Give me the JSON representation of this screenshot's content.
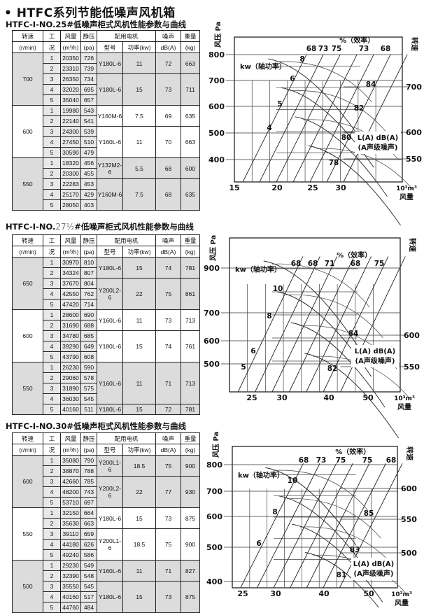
{
  "page_title": "• HTFC系列节能低噪声风机箱",
  "table_headers": {
    "speed": "转速",
    "speed_unit": "(r/min)",
    "case": "工况",
    "flow": "风量",
    "flow_unit": "(m³/h)",
    "pressure": "静压",
    "pressure_unit": "(pa)",
    "motor": "配用电机",
    "model": "型号",
    "power": "功率(kw)",
    "noise": "噪声",
    "noise_unit": "dB(A)",
    "weight": "重量",
    "weight_unit": "(kg)"
  },
  "tables": [
    {
      "title_prefix": "HTFC-Ⅰ-NO.",
      "title_no": "25",
      "title_suffix": "#低噪声柜式风机性能参数与曲线",
      "groups": [
        {
          "speed": "700",
          "rows": [
            [
              "1",
              "20350",
              "726"
            ],
            [
              "2",
              "23310",
              "739"
            ],
            [
              "3",
              "26350",
              "734"
            ],
            [
              "4",
              "32020",
              "695"
            ],
            [
              "5",
              "35040",
              "657"
            ]
          ],
          "motors": [
            {
              "model": "Y180L-6",
              "power": "11",
              "noise": "72",
              "weight": "663",
              "cases": 2
            },
            {
              "model": "Y180L-6",
              "power": "15",
              "noise": "73",
              "weight": "711",
              "cases": 3
            }
          ]
        },
        {
          "speed": "600",
          "rows": [
            [
              "1",
              "19980",
              "543"
            ],
            [
              "2",
              "22140",
              "541"
            ],
            [
              "3",
              "24300",
              "539"
            ],
            [
              "4",
              "27450",
              "510"
            ],
            [
              "5",
              "30590",
              "479"
            ]
          ],
          "motors": [
            {
              "model": "Y160M-6",
              "power": "7.5",
              "noise": "69",
              "weight": "635",
              "cases": 2
            },
            {
              "model": "Y160L-6",
              "power": "11",
              "noise": "70",
              "weight": "663",
              "cases": 3
            }
          ]
        },
        {
          "speed": "550",
          "rows": [
            [
              "1",
              "18320",
              "456"
            ],
            [
              "2",
              "20300",
              "455"
            ],
            [
              "3",
              "22283",
              "453"
            ],
            [
              "4",
              "25170",
              "429"
            ],
            [
              "5",
              "28050",
              "403"
            ]
          ],
          "motors": [
            {
              "model": "Y132M2-6",
              "power": "5.5",
              "noise": "68",
              "weight": "600",
              "cases": 2
            },
            {
              "model": "Y160M-6",
              "power": "7.5",
              "noise": "68",
              "weight": "635",
              "cases": 3
            }
          ]
        }
      ]
    },
    {
      "title_prefix": "HTFC-Ⅰ-NO.",
      "title_no": "27½",
      "title_suffix": "#低噪声柜式风机性能参数与曲线",
      "groups": [
        {
          "speed": "650",
          "rows": [
            [
              "1",
              "30970",
              "810"
            ],
            [
              "2",
              "34324",
              "807"
            ],
            [
              "3",
              "37670",
              "804"
            ],
            [
              "4",
              "42550",
              "762"
            ],
            [
              "5",
              "47420",
              "714"
            ]
          ],
          "motors": [
            {
              "model": "Y180L-6",
              "power": "15",
              "noise": "74",
              "weight": "781",
              "cases": 2
            },
            {
              "model": "Y200L2-6",
              "power": "22",
              "noise": "75",
              "weight": "861",
              "cases": 3
            }
          ]
        },
        {
          "speed": "600",
          "rows": [
            [
              "1",
              "28600",
              "690"
            ],
            [
              "2",
              "31690",
              "688"
            ],
            [
              "3",
              "34780",
              "685"
            ],
            [
              "4",
              "39290",
              "649"
            ],
            [
              "5",
              "43790",
              "608"
            ]
          ],
          "motors": [
            {
              "model": "Y160L-6",
              "power": "11",
              "noise": "73",
              "weight": "713",
              "cases": 2
            },
            {
              "model": "Y180L-6",
              "power": "15",
              "noise": "74",
              "weight": "761",
              "cases": 3
            }
          ]
        },
        {
          "speed": "550",
          "rows": [
            [
              "1",
              "26230",
              "590"
            ],
            [
              "2",
              "29060",
              "578"
            ],
            [
              "3",
              "31890",
              "575"
            ],
            [
              "4",
              "36030",
              "545"
            ],
            [
              "5",
              "40160",
              "511"
            ]
          ],
          "motors": [
            {
              "model": "Y160L-6",
              "power": "11",
              "noise": "71",
              "weight": "713",
              "cases": 4
            },
            {
              "model": "Y180L-6",
              "power": "15",
              "noise": "72",
              "weight": "781",
              "cases": 1
            }
          ]
        }
      ]
    },
    {
      "title_prefix": "HTFC-Ⅰ-NO.",
      "title_no": "30",
      "title_suffix": "#低噪声柜式风机性能参数与曲线",
      "groups": [
        {
          "speed": "600",
          "rows": [
            [
              "1",
              "35080",
              "790"
            ],
            [
              "2",
              "38870",
              "788"
            ],
            [
              "3",
              "42660",
              "785"
            ],
            [
              "4",
              "48200",
              "743"
            ],
            [
              "5",
              "53710",
              "697"
            ]
          ],
          "motors": [
            {
              "model": "Y200L1-6",
              "power": "18.5",
              "noise": "75",
              "weight": "900",
              "cases": 2
            },
            {
              "model": "Y200L2-6",
              "power": "22",
              "noise": "77",
              "weight": "930",
              "cases": 3
            }
          ]
        },
        {
          "speed": "550",
          "rows": [
            [
              "1",
              "32150",
              "664"
            ],
            [
              "2",
              "35630",
              "663"
            ],
            [
              "3",
              "39110",
              "659"
            ],
            [
              "4",
              "44180",
              "626"
            ],
            [
              "5",
              "49240",
              "586"
            ]
          ],
          "motors": [
            {
              "model": "Y180L-6",
              "power": "15",
              "noise": "73",
              "weight": "875",
              "cases": 2
            },
            {
              "model": "Y200L1-6",
              "power": "18.5",
              "noise": "75",
              "weight": "900",
              "cases": 3
            }
          ]
        },
        {
          "speed": "500",
          "rows": [
            [
              "1",
              "29230",
              "549"
            ],
            [
              "2",
              "32390",
              "548"
            ],
            [
              "3",
              "35550",
              "545"
            ],
            [
              "4",
              "40160",
              "517"
            ],
            [
              "5",
              "44760",
              "484"
            ]
          ],
          "motors": [
            {
              "model": "Y160L-6",
              "power": "11",
              "noise": "71",
              "weight": "827",
              "cases": 2
            },
            {
              "model": "Y180L-6",
              "power": "15",
              "noise": "73",
              "weight": "875",
              "cases": 3
            }
          ]
        }
      ]
    }
  ],
  "chart_data": [
    {
      "type": "line",
      "ylabel": "风压 Pa",
      "y2label": "转速",
      "xlabel": "风量",
      "xunit": "10³m³",
      "efficiency_title": "%（效率）",
      "power_title": "kw（轴功率）",
      "noise_title": "L(A) dB(A)",
      "noise_subtitle": "(A声级噪声)",
      "x_ticks": [
        "15",
        "20",
        "25",
        "30"
      ],
      "y_ticks": [
        "800",
        "700",
        "600",
        "500",
        "400"
      ],
      "y2_ticks": [
        "700",
        "600",
        "550"
      ],
      "efficiency_labels": [
        "68",
        "73",
        "75",
        "73",
        "68"
      ],
      "power_labels": [
        "8",
        "6",
        "5",
        "4"
      ],
      "noise_labels": [
        "84",
        "82",
        "80",
        "78"
      ]
    },
    {
      "type": "line",
      "ylabel": "风压 Pa",
      "y2label": "转速",
      "xlabel": "风量",
      "xunit": "10³m³",
      "efficiency_title": "%（效率）",
      "power_title": "kw（轴功率）",
      "noise_title": "L(A) dB(A)",
      "noise_subtitle": "(A声级噪声)",
      "x_ticks": [
        "25",
        "30",
        "40",
        "50"
      ],
      "y_ticks": [
        "900",
        "700",
        "600",
        "500"
      ],
      "y2_ticks": [
        "600",
        "550"
      ],
      "efficiency_labels": [
        "68",
        "68",
        "71",
        "68",
        "75"
      ],
      "power_labels": [
        "10",
        "8",
        "6",
        "5"
      ],
      "noise_labels": [
        "84",
        "82"
      ]
    },
    {
      "type": "line",
      "ylabel": "风压 Pa",
      "y2label": "转速",
      "xlabel": "风量",
      "xunit": "10³m³",
      "efficiency_title": "%（效率）",
      "power_title": "kw（轴功率）",
      "noise_title": "L(A) dB(A)",
      "noise_subtitle": "(A声级噪声)",
      "x_ticks": [
        "25",
        "30",
        "40",
        "50"
      ],
      "y_ticks": [
        "800",
        "700",
        "600",
        "500",
        "400"
      ],
      "y2_ticks": [
        "600",
        "550",
        "500"
      ],
      "efficiency_labels": [
        "68",
        "73",
        "75",
        "75",
        "68"
      ],
      "power_labels": [
        "10",
        "8",
        "6"
      ],
      "noise_labels": [
        "85",
        "83",
        "81"
      ]
    }
  ]
}
